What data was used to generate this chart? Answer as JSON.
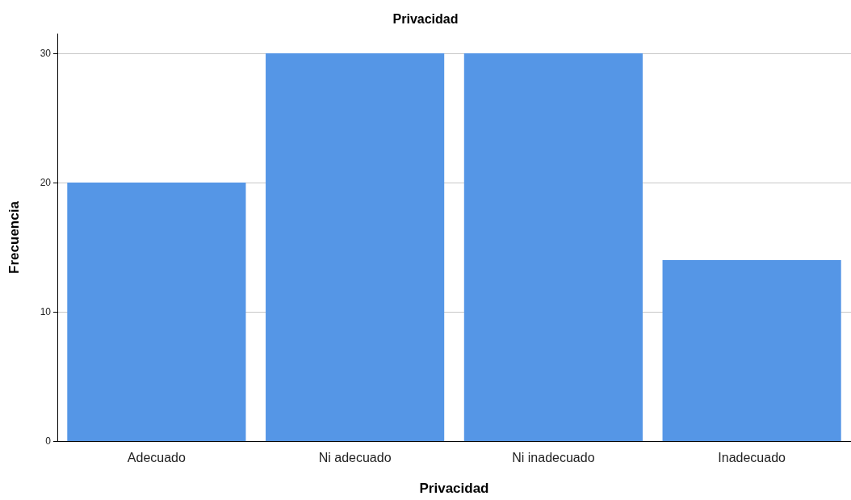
{
  "chart_data": {
    "type": "bar",
    "title": "Privacidad",
    "xlabel": "Privacidad",
    "ylabel": "Frecuencia",
    "categories": [
      "Adecuado",
      "Ni adecuado",
      "Ni inadecuado",
      "Inadecuado"
    ],
    "values": [
      20,
      30,
      30,
      14
    ],
    "color": "#5596e6",
    "ylim": [
      0,
      31.5
    ],
    "yticks": [
      0,
      10,
      20,
      30
    ],
    "grid": "y"
  }
}
